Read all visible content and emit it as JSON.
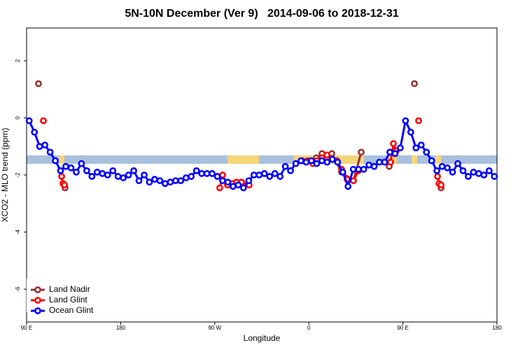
{
  "chart_data": {
    "type": "line",
    "title": "5N-10N December (Ver 9)   2014-09-06 to 2018-12-31",
    "x_label": "Longitude",
    "y_label": "XCO2 - MLO trend (ppm)",
    "xlim": [
      90,
      540
    ],
    "ylim": [
      -7.15,
      3.15
    ],
    "xticks": [
      {
        "value": 90,
        "label": "90 E"
      },
      {
        "value": 180,
        "label": "180"
      },
      {
        "value": 270,
        "label": "90 W"
      },
      {
        "value": 360,
        "label": "0"
      },
      {
        "value": 450,
        "label": "90 E"
      },
      {
        "value": 540,
        "label": "180"
      }
    ],
    "yticks": [
      -6,
      -4,
      -2,
      0,
      2
    ],
    "legend": "bottom-left",
    "series": [
      {
        "name": "Land Nadir",
        "color": "#993333",
        "x": [
          101.4,
          null,
          126.8,
          null,
          282.9,
          null,
          367.2,
          372.6,
          382.0,
          391.3,
          402.7,
          410.1,
          null,
          436.9,
          null,
          461.0,
          null,
          486.5
        ],
        "values": [
          1.2,
          null,
          -2.45,
          null,
          -2.35,
          null,
          -1.4,
          -1.25,
          -1.25,
          -1.9,
          -2.2,
          -1.2,
          null,
          -1.7,
          null,
          1.2,
          null,
          -2.45
        ]
      },
      {
        "name": "Land Glint",
        "color": "#ff0000",
        "x": [
          106.1,
          null,
          123.5,
          124.8,
          126.2,
          null,
          274.8,
          277.5,
          282.2,
          286.9,
          290.9,
          295.6,
          302.9,
          null,
          353.8,
          359.2,
          363.9,
          367.9,
          372.6,
          377.3,
          382.0,
          386.7,
          391.3,
          396.7,
          402.7,
          407.4,
          null,
          438.2,
          440.9,
          443.6,
          null,
          465.0,
          null,
          483.1,
          484.5,
          486.5
        ],
        "values": [
          -0.1,
          null,
          -2.05,
          -2.3,
          -2.35,
          null,
          -2.45,
          -2.0,
          -2.35,
          -2.3,
          -2.25,
          -2.25,
          -2.35,
          null,
          -1.5,
          -1.5,
          -1.6,
          -1.5,
          -1.4,
          -1.3,
          -1.45,
          -1.5,
          -1.8,
          -2.15,
          -2.2,
          -1.85,
          null,
          -1.55,
          -0.9,
          -1.15,
          null,
          -0.1,
          null,
          -2.05,
          -2.3,
          -2.35
        ]
      },
      {
        "name": "Ocean Glint",
        "color": "#0000ff",
        "x": [
          92.5,
          97.5,
          102.5,
          107.5,
          112.5,
          117.5,
          122.5,
          127.5,
          132.5,
          137.5,
          142.5,
          147.5,
          152.5,
          157.5,
          162.5,
          167.5,
          172.5,
          177.5,
          182.5,
          187.5,
          192.5,
          197.5,
          202.5,
          207.5,
          212.5,
          217.5,
          222.5,
          227.5,
          232.5,
          237.5,
          242.5,
          247.5,
          252.5,
          257.5,
          262.5,
          267.5,
          272.5,
          277.5,
          282.5,
          287.5,
          292.5,
          297.5,
          302.5,
          307.5,
          312.5,
          317.5,
          322.5,
          327.5,
          332.5,
          337.5,
          342.5,
          347.5,
          352.5,
          357.5,
          362.5,
          367.5,
          372.5,
          377.5,
          382.5,
          387.5,
          392.5,
          397.5,
          402.5,
          407.5,
          412.5,
          417.5,
          422.5,
          427.5,
          432.5,
          437.5,
          442.5,
          447.5,
          452.5,
          457.5,
          462.5,
          467.5,
          472.5,
          477.5,
          482.5,
          487.5,
          492.5,
          497.5,
          502.5,
          507.5,
          512.5,
          517.5,
          522.5,
          527.5,
          532.5,
          537.5
        ],
        "values": [
          -0.1,
          -0.5,
          -1.0,
          -0.95,
          -1.2,
          -1.5,
          -1.85,
          -1.7,
          -1.75,
          -1.9,
          -1.6,
          -1.85,
          -2.05,
          -1.9,
          -1.95,
          -2.0,
          -1.85,
          -2.05,
          -2.1,
          -2.0,
          -1.85,
          -2.2,
          -2.0,
          -2.25,
          -2.15,
          -2.2,
          -2.3,
          -2.25,
          -2.2,
          -2.2,
          -2.1,
          -2.05,
          -1.85,
          -1.95,
          -1.95,
          -1.95,
          -2.05,
          -2.2,
          -2.25,
          -2.4,
          -2.35,
          -2.45,
          -2.2,
          -2.0,
          -2.0,
          -1.95,
          -2.05,
          -1.95,
          -2.05,
          -1.7,
          -1.85,
          -1.6,
          -1.5,
          -1.55,
          -1.5,
          -1.6,
          -1.5,
          -1.55,
          -1.45,
          -1.55,
          -1.9,
          -2.4,
          -1.8,
          -1.8,
          -1.8,
          -1.65,
          -1.7,
          -1.55,
          -1.55,
          -1.2,
          -1.25,
          -1.05,
          -0.1,
          -0.5,
          -1.05,
          -0.95,
          -1.2,
          -1.5,
          -1.85,
          -1.7,
          -1.75,
          -1.9,
          -1.6,
          -1.85,
          -2.05,
          -1.9,
          -1.95,
          -2.0,
          -1.85,
          -2.05
        ]
      }
    ]
  }
}
